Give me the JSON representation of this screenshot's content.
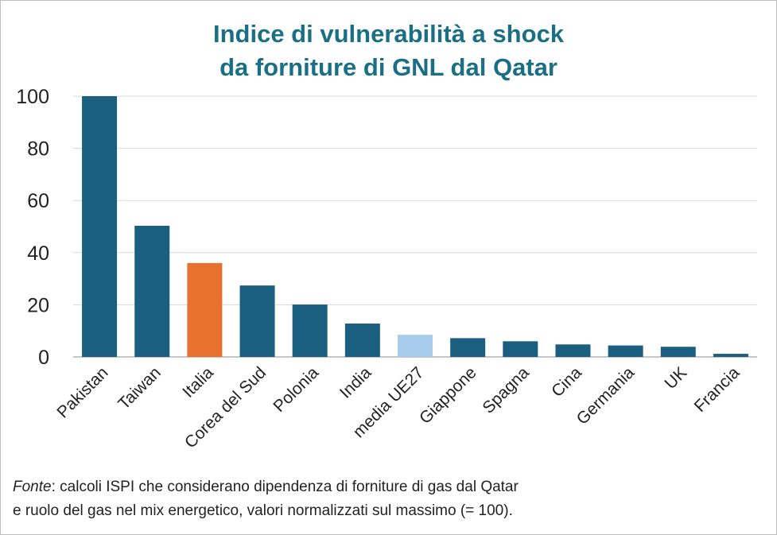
{
  "chart_data": {
    "type": "bar",
    "title_lines": [
      "Indice di vulnerabilità a shock",
      "da forniture di GNL dal Qatar"
    ],
    "categories": [
      "Pakistan",
      "Taiwan",
      "Italia",
      "Corea del Sud",
      "Polonia",
      "India",
      "media UE27",
      "Giappone",
      "Spagna",
      "Cina",
      "Germania",
      "UK",
      "Francia"
    ],
    "values": [
      100,
      50.3,
      36,
      27.4,
      20.1,
      12.8,
      8.5,
      7.2,
      6,
      4.8,
      4.4,
      3.9,
      1.2
    ],
    "highlight": {
      "Italia": "#e8712f",
      "media UE27": "#a8cdec"
    },
    "default_color": "#1a5f80",
    "ylim": [
      0,
      100
    ],
    "yticks": [
      0,
      20,
      40,
      60,
      80,
      100
    ],
    "grid": true,
    "xlabel": "",
    "ylabel": ""
  },
  "footnote": {
    "source_label": "Fonte",
    "line1_rest": ": calcoli ISPI che considerano dipendenza di forniture di gas dal Qatar",
    "line2": "e ruolo del gas nel mix energetico, valori normalizzati sul massimo (= 100)."
  }
}
